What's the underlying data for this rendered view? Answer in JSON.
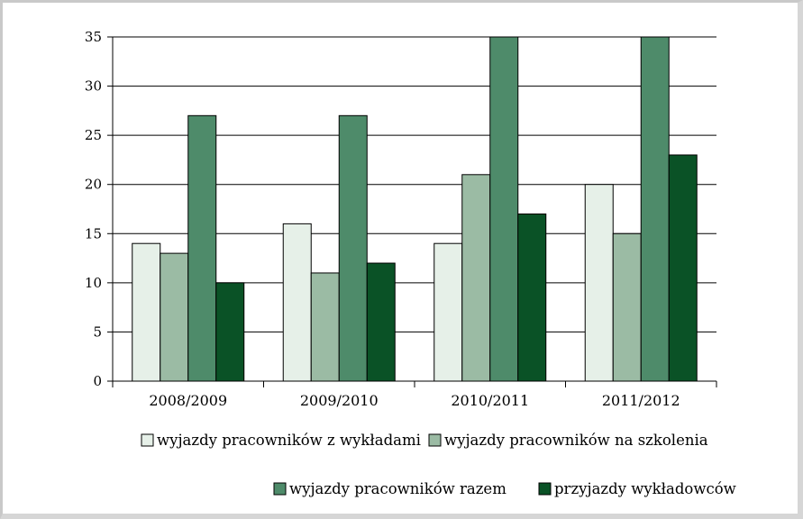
{
  "chart_data": {
    "type": "bar",
    "categories": [
      "2008/2009",
      "2009/2010",
      "2010/2011",
      "2011/2012"
    ],
    "series": [
      {
        "name": "wyjazdy pracowników z wykładami",
        "values": [
          14,
          16,
          14,
          20
        ],
        "color": "#e6f0e8"
      },
      {
        "name": "wyjazdy pracowników na szkolenia",
        "values": [
          13,
          11,
          21,
          15
        ],
        "color": "#9bbba4"
      },
      {
        "name": "wyjazdy pracowników razem",
        "values": [
          27,
          27,
          35,
          35
        ],
        "color": "#4e8b6a"
      },
      {
        "name": "przyjazdy wykładowców",
        "values": [
          10,
          12,
          17,
          23
        ],
        "color": "#0a5226"
      }
    ],
    "ylim": [
      0,
      35
    ],
    "yticks": [
      0,
      5,
      10,
      15,
      20,
      25,
      30,
      35
    ],
    "grid": true,
    "legend_position": "bottom"
  }
}
